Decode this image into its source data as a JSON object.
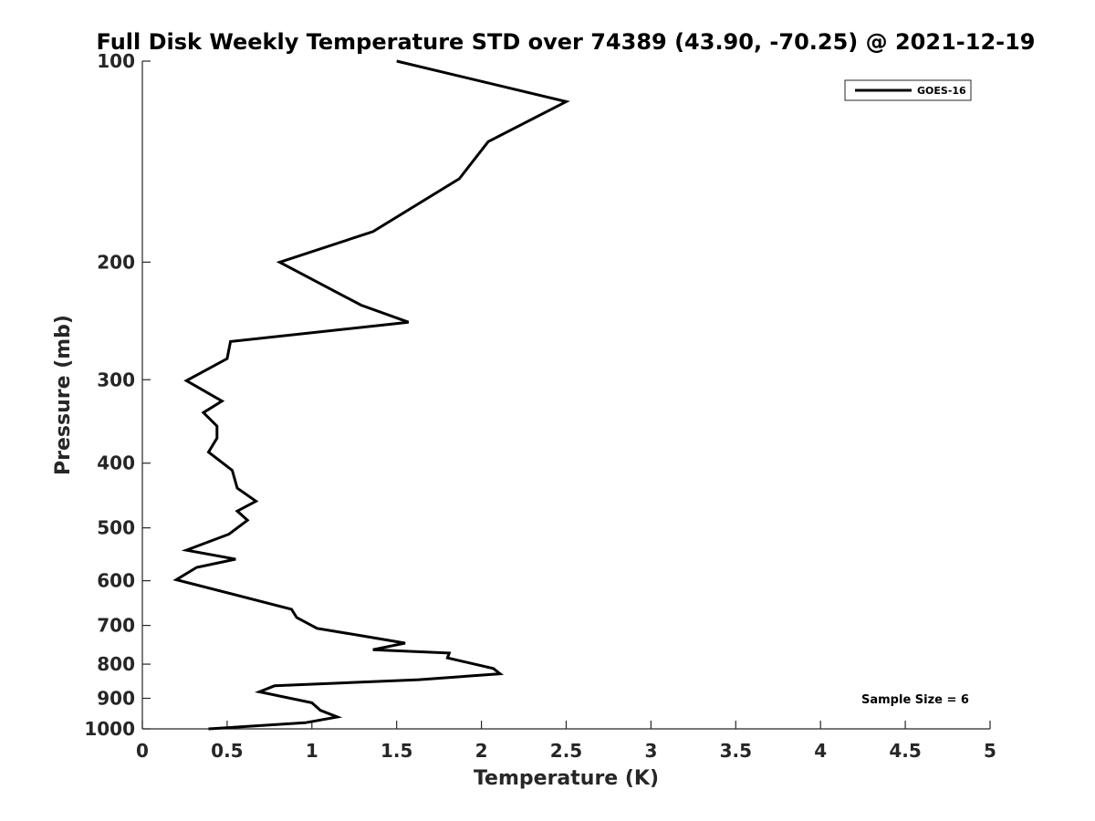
{
  "chart_data": {
    "type": "line",
    "title": "Full Disk Weekly Temperature STD over 74389 (43.90, -70.25) @ 2021-12-19",
    "xlabel": "Temperature (K)",
    "ylabel": "Pressure (mb)",
    "xlim": [
      0,
      5
    ],
    "ylim": [
      1000,
      100
    ],
    "yscale": "log",
    "y_reversed": true,
    "grid": false,
    "legend_position": "top-right",
    "x_ticks": [
      "0",
      "0.5",
      "1",
      "1.5",
      "2",
      "2.5",
      "3",
      "3.5",
      "4",
      "4.5",
      "5"
    ],
    "y_ticks": [
      "100",
      "200",
      "300",
      "400",
      "500",
      "600",
      "700",
      "800",
      "900",
      "1000"
    ],
    "annotation": "Sample Size = 6",
    "series": [
      {
        "name": "GOES-16",
        "color": "#000000",
        "x": [
          1.5,
          2.5,
          2.04,
          1.87,
          1.36,
          0.81,
          1.29,
          1.57,
          0.52,
          0.5,
          0.26,
          0.47,
          0.36,
          0.44,
          0.44,
          0.39,
          0.53,
          0.56,
          0.67,
          0.56,
          0.62,
          0.51,
          0.26,
          0.55,
          0.32,
          0.2,
          0.88,
          0.91,
          1.03,
          1.26,
          1.55,
          1.36,
          1.81,
          1.8,
          2.07,
          2.11,
          1.63,
          0.78,
          0.69,
          1.0,
          1.05,
          1.15,
          0.96,
          0.39
        ],
        "y": [
          100,
          115,
          132,
          150,
          180,
          200,
          232,
          246,
          263,
          279,
          301,
          323,
          336,
          352,
          367,
          385,
          410,
          436,
          456,
          472,
          487,
          511,
          540,
          557,
          573,
          598,
          662,
          681,
          707,
          723,
          744,
          761,
          770,
          783,
          812,
          827,
          844,
          862,
          880,
          914,
          938,
          960,
          979,
          1000
        ]
      }
    ]
  }
}
